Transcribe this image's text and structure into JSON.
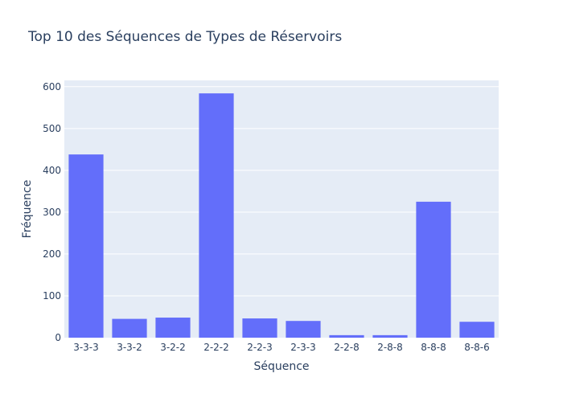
{
  "chart_data": {
    "type": "bar",
    "title": "Top 10 des Séquences de Types de Réservoirs",
    "xlabel": "Séquence",
    "ylabel": "Fréquence",
    "categories": [
      "3-3-3",
      "3-3-2",
      "3-2-2",
      "2-2-2",
      "2-2-3",
      "2-3-3",
      "2-2-8",
      "2-8-8",
      "8-8-8",
      "8-8-6"
    ],
    "values": [
      438,
      45,
      48,
      584,
      46,
      40,
      6,
      6,
      325,
      38
    ],
    "ylim": [
      0,
      615
    ],
    "yticks": [
      0,
      100,
      200,
      300,
      400,
      500,
      600
    ],
    "grid": true,
    "legend": "none",
    "bar_color": "#636efa",
    "plot_bg": "#e5ecf6"
  }
}
